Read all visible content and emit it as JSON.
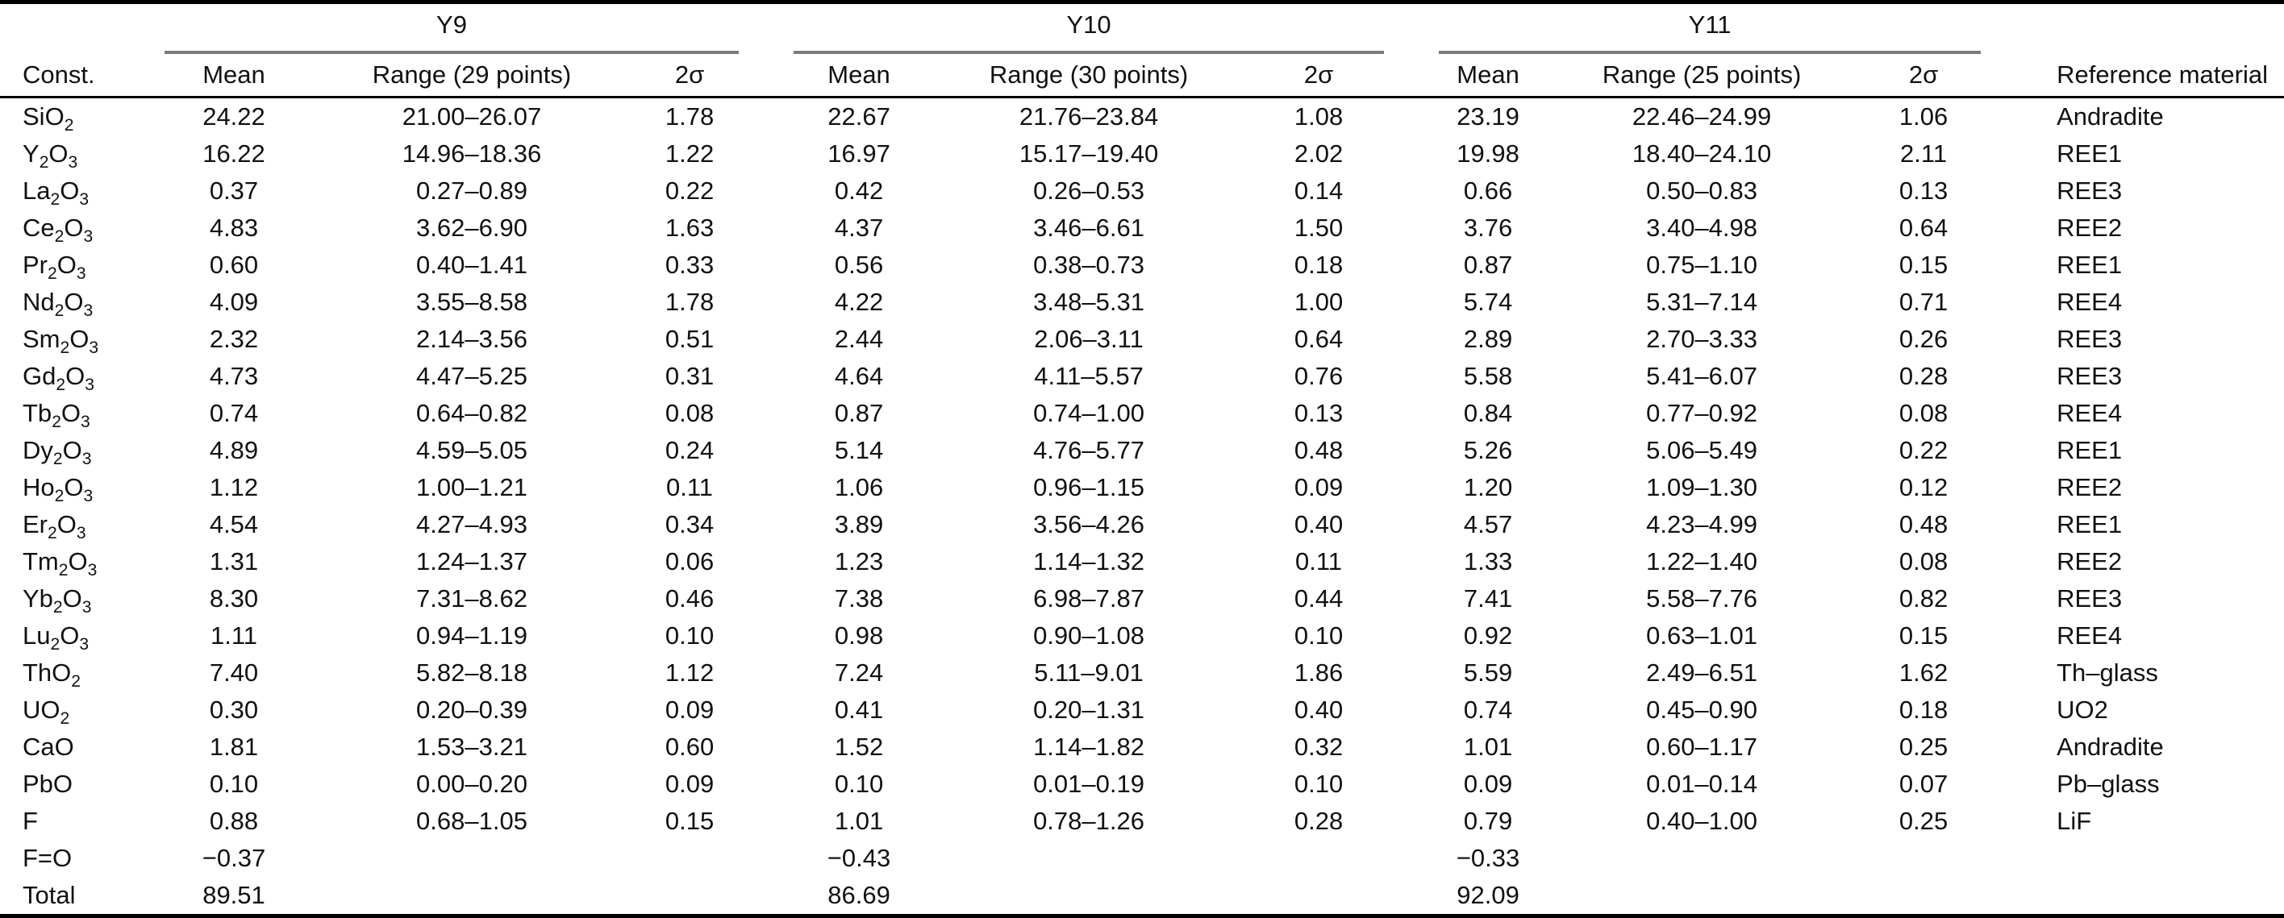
{
  "table": {
    "const_header": "Const.",
    "ref_header": "Reference material",
    "groups": [
      {
        "label": "Y9",
        "mean": "Mean",
        "range": "Range (29 points)",
        "sigma": "2σ"
      },
      {
        "label": "Y10",
        "mean": "Mean",
        "range": "Range (30 points)",
        "sigma": "2σ"
      },
      {
        "label": "Y11",
        "mean": "Mean",
        "range": "Range (25 points)",
        "sigma": "2σ"
      }
    ],
    "rows": [
      {
        "const": "SiO2",
        "y9": [
          "24.22",
          "21.00–26.07",
          "1.78"
        ],
        "y10": [
          "22.67",
          "21.76–23.84",
          "1.08"
        ],
        "y11": [
          "23.19",
          "22.46–24.99",
          "1.06"
        ],
        "ref": "Andradite"
      },
      {
        "const": "Y2O3",
        "y9": [
          "16.22",
          "14.96–18.36",
          "1.22"
        ],
        "y10": [
          "16.97",
          "15.17–19.40",
          "2.02"
        ],
        "y11": [
          "19.98",
          "18.40–24.10",
          "2.11"
        ],
        "ref": "REE1"
      },
      {
        "const": "La2O3",
        "y9": [
          "0.37",
          "0.27–0.89",
          "0.22"
        ],
        "y10": [
          "0.42",
          "0.26–0.53",
          "0.14"
        ],
        "y11": [
          "0.66",
          "0.50–0.83",
          "0.13"
        ],
        "ref": "REE3"
      },
      {
        "const": "Ce2O3",
        "y9": [
          "4.83",
          "3.62–6.90",
          "1.63"
        ],
        "y10": [
          "4.37",
          "3.46–6.61",
          "1.50"
        ],
        "y11": [
          "3.76",
          "3.40–4.98",
          "0.64"
        ],
        "ref": "REE2"
      },
      {
        "const": "Pr2O3",
        "y9": [
          "0.60",
          "0.40–1.41",
          "0.33"
        ],
        "y10": [
          "0.56",
          "0.38–0.73",
          "0.18"
        ],
        "y11": [
          "0.87",
          "0.75–1.10",
          "0.15"
        ],
        "ref": "REE1"
      },
      {
        "const": "Nd2O3",
        "y9": [
          "4.09",
          "3.55–8.58",
          "1.78"
        ],
        "y10": [
          "4.22",
          "3.48–5.31",
          "1.00"
        ],
        "y11": [
          "5.74",
          "5.31–7.14",
          "0.71"
        ],
        "ref": "REE4"
      },
      {
        "const": "Sm2O3",
        "y9": [
          "2.32",
          "2.14–3.56",
          "0.51"
        ],
        "y10": [
          "2.44",
          "2.06–3.11",
          "0.64"
        ],
        "y11": [
          "2.89",
          "2.70–3.33",
          "0.26"
        ],
        "ref": "REE3"
      },
      {
        "const": "Gd2O3",
        "y9": [
          "4.73",
          "4.47–5.25",
          "0.31"
        ],
        "y10": [
          "4.64",
          "4.11–5.57",
          "0.76"
        ],
        "y11": [
          "5.58",
          "5.41–6.07",
          "0.28"
        ],
        "ref": "REE3"
      },
      {
        "const": "Tb2O3",
        "y9": [
          "0.74",
          "0.64–0.82",
          "0.08"
        ],
        "y10": [
          "0.87",
          "0.74–1.00",
          "0.13"
        ],
        "y11": [
          "0.84",
          "0.77–0.92",
          "0.08"
        ],
        "ref": "REE4"
      },
      {
        "const": "Dy2O3",
        "y9": [
          "4.89",
          "4.59–5.05",
          "0.24"
        ],
        "y10": [
          "5.14",
          "4.76–5.77",
          "0.48"
        ],
        "y11": [
          "5.26",
          "5.06–5.49",
          "0.22"
        ],
        "ref": "REE1"
      },
      {
        "const": "Ho2O3",
        "y9": [
          "1.12",
          "1.00–1.21",
          "0.11"
        ],
        "y10": [
          "1.06",
          "0.96–1.15",
          "0.09"
        ],
        "y11": [
          "1.20",
          "1.09–1.30",
          "0.12"
        ],
        "ref": "REE2"
      },
      {
        "const": "Er2O3",
        "y9": [
          "4.54",
          "4.27–4.93",
          "0.34"
        ],
        "y10": [
          "3.89",
          "3.56–4.26",
          "0.40"
        ],
        "y11": [
          "4.57",
          "4.23–4.99",
          "0.48"
        ],
        "ref": "REE1"
      },
      {
        "const": "Tm2O3",
        "y9": [
          "1.31",
          "1.24–1.37",
          "0.06"
        ],
        "y10": [
          "1.23",
          "1.14–1.32",
          "0.11"
        ],
        "y11": [
          "1.33",
          "1.22–1.40",
          "0.08"
        ],
        "ref": "REE2"
      },
      {
        "const": "Yb2O3",
        "y9": [
          "8.30",
          "7.31–8.62",
          "0.46"
        ],
        "y10": [
          "7.38",
          "6.98–7.87",
          "0.44"
        ],
        "y11": [
          "7.41",
          "5.58–7.76",
          "0.82"
        ],
        "ref": "REE3"
      },
      {
        "const": "Lu2O3",
        "y9": [
          "1.11",
          "0.94–1.19",
          "0.10"
        ],
        "y10": [
          "0.98",
          "0.90–1.08",
          "0.10"
        ],
        "y11": [
          "0.92",
          "0.63–1.01",
          "0.15"
        ],
        "ref": "REE4"
      },
      {
        "const": "ThO2",
        "y9": [
          "7.40",
          "5.82–8.18",
          "1.12"
        ],
        "y10": [
          "7.24",
          "5.11–9.01",
          "1.86"
        ],
        "y11": [
          "5.59",
          "2.49–6.51",
          "1.62"
        ],
        "ref": "Th–glass"
      },
      {
        "const": "UO2",
        "y9": [
          "0.30",
          "0.20–0.39",
          "0.09"
        ],
        "y10": [
          "0.41",
          "0.20–1.31",
          "0.40"
        ],
        "y11": [
          "0.74",
          "0.45–0.90",
          "0.18"
        ],
        "ref": "UO2"
      },
      {
        "const": "CaO",
        "y9": [
          "1.81",
          "1.53–3.21",
          "0.60"
        ],
        "y10": [
          "1.52",
          "1.14–1.82",
          "0.32"
        ],
        "y11": [
          "1.01",
          "0.60–1.17",
          "0.25"
        ],
        "ref": "Andradite"
      },
      {
        "const": "PbO",
        "y9": [
          "0.10",
          "0.00–0.20",
          "0.09"
        ],
        "y10": [
          "0.10",
          "0.01–0.19",
          "0.10"
        ],
        "y11": [
          "0.09",
          "0.01–0.14",
          "0.07"
        ],
        "ref": "Pb–glass"
      },
      {
        "const": "F",
        "y9": [
          "0.88",
          "0.68–1.05",
          "0.15"
        ],
        "y10": [
          "1.01",
          "0.78–1.26",
          "0.28"
        ],
        "y11": [
          "0.79",
          "0.40–1.00",
          "0.25"
        ],
        "ref": "LiF"
      },
      {
        "const": "F=O",
        "y9": [
          "−0.37",
          "",
          ""
        ],
        "y10": [
          "−0.43",
          "",
          ""
        ],
        "y11": [
          "−0.33",
          "",
          ""
        ],
        "ref": ""
      },
      {
        "const": "Total",
        "y9": [
          "89.51",
          "",
          ""
        ],
        "y10": [
          "86.69",
          "",
          ""
        ],
        "y11": [
          "92.09",
          "",
          ""
        ],
        "ref": ""
      }
    ]
  },
  "colors": {
    "text": "#111111",
    "rule_black": "#000000",
    "rule_gray": "#7b7b7b",
    "background": "#ffffff"
  }
}
